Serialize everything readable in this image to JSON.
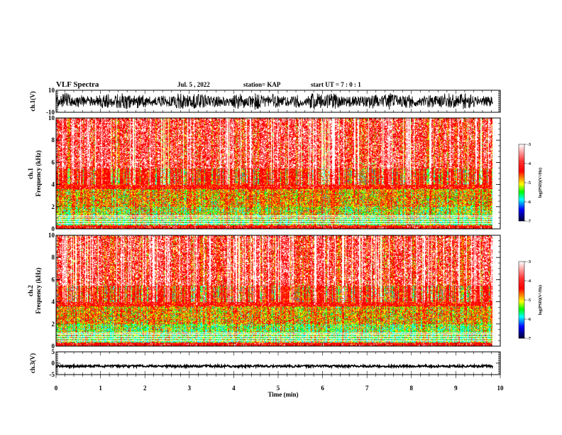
{
  "header": {
    "title": "VLF Spectra",
    "date": "Jul. 5 , 2022",
    "station": "station= KAP",
    "start_ut": "start UT = 7 : 0 : 1"
  },
  "chart_data": [
    {
      "type": "line",
      "panel": "ch1-waveform",
      "ylabel": "ch.1(V)",
      "ylim": [
        -10,
        10
      ],
      "yticks": [
        "10",
        "-10"
      ],
      "xlim": [
        0,
        10
      ],
      "data_extent_min": 9.83,
      "amplitude_range_V": [
        -8,
        8
      ],
      "color": "#000000"
    },
    {
      "type": "heatmap",
      "panel": "ch1-spectrogram",
      "ylabel_line1": "ch.1",
      "ylabel_line2": "Frequency (kHz)",
      "ylim": [
        0,
        10
      ],
      "yticks": [
        "0",
        "2",
        "4",
        "6",
        "8",
        "10"
      ],
      "xlim": [
        0,
        10
      ],
      "data_extent_min": 9.83,
      "colorbar": {
        "label": "log(PSD)(V²/Hz)",
        "range": [
          -7,
          -3
        ],
        "ticks": [
          "-3",
          "-4",
          "-5",
          "-6",
          "-7"
        ]
      }
    },
    {
      "type": "heatmap",
      "panel": "ch2-spectrogram",
      "ylabel_line1": "ch.2",
      "ylabel_line2": "Frequency (kHz)",
      "ylim": [
        0,
        10
      ],
      "yticks": [
        "0",
        "2",
        "4",
        "6",
        "8",
        "10"
      ],
      "xlim": [
        0,
        10
      ],
      "data_extent_min": 9.83,
      "colorbar": {
        "label": "log(PSD)(V²/Hz)",
        "range": [
          -7,
          -3
        ],
        "ticks": [
          "-3",
          "-4",
          "-5",
          "-6",
          "-7"
        ]
      }
    },
    {
      "type": "line",
      "panel": "ch3-waveform",
      "ylabel": "ch.3(V)",
      "ylim": [
        -5,
        5
      ],
      "yticks": [
        "5",
        "0",
        "-5"
      ],
      "xlim": [
        0,
        10
      ],
      "data_extent_min": 9.83,
      "amplitude_range_V": [
        -1.8,
        -0.8
      ],
      "color": "#000000"
    }
  ],
  "xaxis": {
    "label": "Time (min)",
    "ticks": [
      "0",
      "1",
      "2",
      "3",
      "4",
      "5",
      "6",
      "7",
      "8",
      "9",
      "10"
    ]
  },
  "colors": {
    "white": "#ffffff",
    "red": "#ff0000",
    "orange": "#ff9900",
    "yellow": "#ffff00",
    "green": "#00ff00",
    "cyan": "#00ffff",
    "blue": "#0000ff",
    "dark": "#000033"
  }
}
